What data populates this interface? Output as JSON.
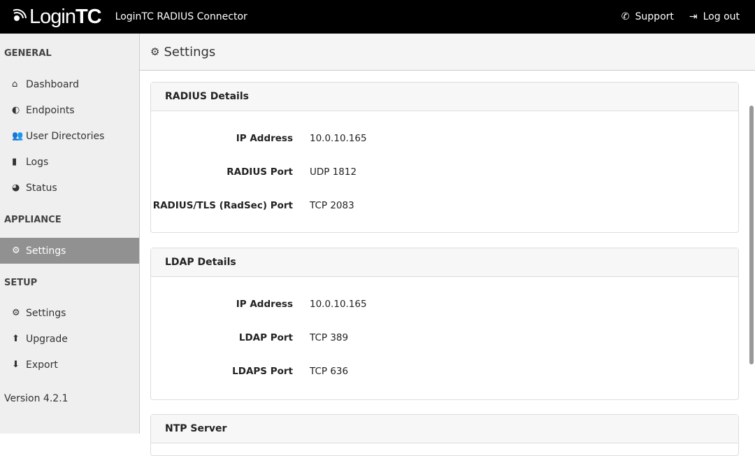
{
  "header": {
    "logo_text_light": "Login",
    "logo_text_bold": "TC",
    "app_title": "LoginTC RADIUS Connector",
    "support": "Support",
    "logout": "Log out"
  },
  "sidebar": {
    "sections": [
      {
        "title": "GENERAL",
        "items": [
          {
            "label": "Dashboard",
            "icon": "home-icon"
          },
          {
            "label": "Endpoints",
            "icon": "shield-icon"
          },
          {
            "label": "User Directories",
            "icon": "users-icon"
          },
          {
            "label": "Logs",
            "icon": "book-icon"
          },
          {
            "label": "Status",
            "icon": "dashboard-icon"
          }
        ]
      },
      {
        "title": "APPLIANCE",
        "items": [
          {
            "label": "Settings",
            "icon": "gears-icon",
            "active": true
          }
        ]
      },
      {
        "title": "SETUP",
        "items": [
          {
            "label": "Settings",
            "icon": "gears-icon"
          },
          {
            "label": "Upgrade",
            "icon": "arrow-up-circle-icon"
          },
          {
            "label": "Export",
            "icon": "arrow-down-circle-icon"
          }
        ]
      }
    ],
    "version": "Version 4.2.1"
  },
  "page": {
    "title": "Settings"
  },
  "cards": [
    {
      "title": "RADIUS Details",
      "rows": [
        {
          "k": "IP Address",
          "v": "10.0.10.165"
        },
        {
          "k": "RADIUS Port",
          "v": "UDP 1812"
        },
        {
          "k": "RADIUS/TLS (RadSec) Port",
          "v": "TCP 2083"
        }
      ]
    },
    {
      "title": "LDAP Details",
      "rows": [
        {
          "k": "IP Address",
          "v": "10.0.10.165"
        },
        {
          "k": "LDAP Port",
          "v": "TCP 389"
        },
        {
          "k": "LDAPS Port",
          "v": "TCP 636"
        }
      ]
    },
    {
      "title": "NTP Server"
    }
  ]
}
